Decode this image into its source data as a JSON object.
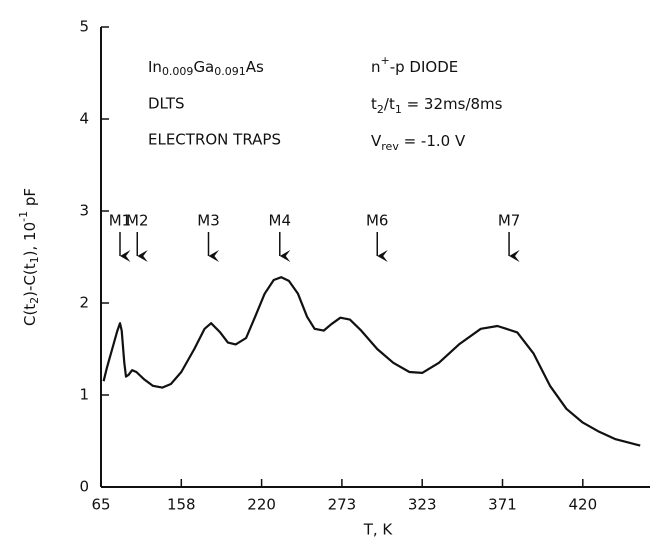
{
  "chart_data": {
    "type": "line",
    "x": [
      68,
      72,
      78,
      84,
      87,
      89,
      92,
      94,
      97,
      101,
      106,
      115,
      125,
      136,
      146,
      158,
      168,
      176,
      181,
      188,
      194,
      200,
      208,
      215,
      222,
      228,
      233,
      238,
      244,
      250,
      255,
      261,
      266,
      272,
      278,
      285,
      295,
      305,
      315,
      323,
      333,
      345,
      358,
      368,
      380,
      390,
      400,
      410,
      420,
      430,
      440,
      455
    ],
    "series": [
      {
        "color": "#111111",
        "values": [
          1.15,
          1.3,
          1.5,
          1.7,
          1.78,
          1.7,
          1.35,
          1.2,
          1.22,
          1.27,
          1.25,
          1.17,
          1.1,
          1.08,
          1.12,
          1.25,
          1.5,
          1.72,
          1.78,
          1.68,
          1.57,
          1.55,
          1.62,
          1.85,
          2.1,
          2.25,
          2.28,
          2.24,
          2.1,
          1.85,
          1.72,
          1.7,
          1.77,
          1.84,
          1.82,
          1.7,
          1.5,
          1.35,
          1.25,
          1.24,
          1.35,
          1.55,
          1.72,
          1.75,
          1.68,
          1.45,
          1.1,
          0.85,
          0.7,
          0.6,
          0.52,
          0.45
        ]
      }
    ],
    "xlim": [
      65,
      461
    ],
    "xticks": [
      65,
      158,
      220,
      273,
      323,
      371,
      420
    ],
    "ylim": [
      0,
      5
    ],
    "yticks": [
      0,
      1,
      2,
      3,
      4,
      5
    ],
    "xlabel": "T, K",
    "ylabel": [
      "C(t",
      "2",
      ")-C(t",
      "1",
      "), 10",
      "-1",
      " pF"
    ],
    "notes": [
      [
        "In",
        "0.009",
        "Ga",
        "0.091",
        "As"
      ],
      [
        "DLTS"
      ],
      [
        "ELECTRON TRAPS"
      ],
      [
        "n",
        "+",
        "-p DIODE"
      ],
      [
        "t",
        "2",
        "/t",
        "1",
        " = 32ms/8ms"
      ],
      [
        "V",
        "rev",
        " = -1.0 V"
      ]
    ],
    "peaks": [
      {
        "label": "M1",
        "x": 87
      },
      {
        "label": "M2",
        "x": 107
      },
      {
        "label": "M3",
        "x": 179
      },
      {
        "label": "M4",
        "x": 232
      },
      {
        "label": "M6",
        "x": 295
      },
      {
        "label": "M7",
        "x": 375
      }
    ]
  }
}
